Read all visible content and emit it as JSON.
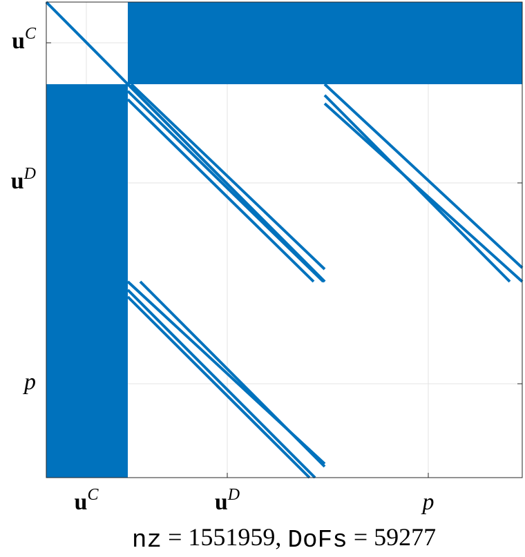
{
  "chart_data": {
    "type": "spy",
    "categories": [
      {
        "symbol": "u",
        "block": "C"
      },
      {
        "symbol": "u",
        "block": "D"
      },
      {
        "symbol": "p"
      }
    ],
    "xlabel": [
      "nz",
      "= 1551959,",
      "DoFs",
      "= 59277"
    ],
    "color": "#0072bd",
    "grid": true
  }
}
